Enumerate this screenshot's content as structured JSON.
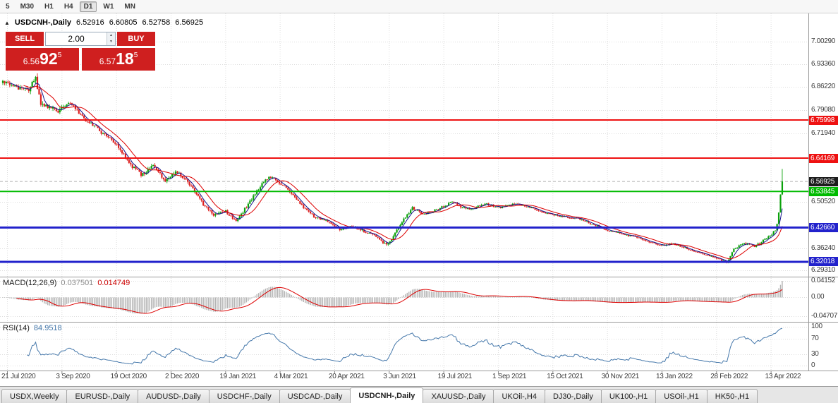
{
  "toolbar": {
    "timeframes": [
      {
        "label": "5",
        "active": false
      },
      {
        "label": "M30",
        "active": false
      },
      {
        "label": "H1",
        "active": false
      },
      {
        "label": "H4",
        "active": false
      },
      {
        "label": "D1",
        "active": true
      },
      {
        "label": "W1",
        "active": false
      },
      {
        "label": "MN",
        "active": false
      }
    ]
  },
  "chart_header": {
    "collapse_arrow": "▲",
    "symbol": "USDCNH-,Daily",
    "open": "6.52916",
    "high": "6.60805",
    "low": "6.52758",
    "close": "6.56925"
  },
  "trade_panel": {
    "sell_label": "SELL",
    "buy_label": "BUY",
    "volume": "2.00",
    "spinner_up_icon": "▲",
    "spinner_down_icon": "▼",
    "sell_price": {
      "small": "6.56",
      "big": "92",
      "sup": "5"
    },
    "buy_price": {
      "small": "6.57",
      "big": "18",
      "sup": "5"
    }
  },
  "price_axis": {
    "labels": [
      {
        "text": "7.00290",
        "value": 7.0029
      },
      {
        "text": "6.93360",
        "value": 6.9336
      },
      {
        "text": "6.86220",
        "value": 6.8622
      },
      {
        "text": "6.79080",
        "value": 6.7908
      },
      {
        "text": "6.71940",
        "value": 6.7194
      },
      {
        "text": "6.50520",
        "value": 6.5052
      },
      {
        "text": "6.36240",
        "value": 6.3624
      },
      {
        "text": "6.29310",
        "value": 6.2931
      }
    ]
  },
  "macd_panel": {
    "name": "MACD(12,26,9)",
    "value_main": "0.037501",
    "value_signal": "0.014749",
    "axis": [
      {
        "text": "0.04152",
        "value": 0.04152
      },
      {
        "text": "0.00",
        "value": 0
      },
      {
        "text": "-0.04707",
        "value": -0.04707
      }
    ]
  },
  "rsi_panel": {
    "name": "RSI(14)",
    "value": "84.9518",
    "axis": [
      {
        "text": "100",
        "value": 100
      },
      {
        "text": "70",
        "value": 70
      },
      {
        "text": "30",
        "value": 30
      },
      {
        "text": "0",
        "value": 0
      }
    ]
  },
  "date_axis": [
    "21 Jul 2020",
    "3 Sep 2020",
    "19 Oct 2020",
    "2 Dec 2020",
    "19 Jan 2021",
    "4 Mar 2021",
    "20 Apr 2021",
    "3 Jun 2021",
    "19 Jul 2021",
    "1 Sep 2021",
    "15 Oct 2021",
    "30 Nov 2021",
    "13 Jan 2022",
    "28 Feb 2022",
    "13 Apr 2022"
  ],
  "tabs": [
    {
      "label": "USDX,Weekly",
      "active": false
    },
    {
      "label": "EURUSD-,Daily",
      "active": false
    },
    {
      "label": "AUDUSD-,Daily",
      "active": false
    },
    {
      "label": "USDCHF-,Daily",
      "active": false
    },
    {
      "label": "USDCAD-,Daily",
      "active": false
    },
    {
      "label": "USDCNH-,Daily",
      "active": true
    },
    {
      "label": "XAUUSD-,Daily",
      "active": false
    },
    {
      "label": "UKOil-,H4",
      "active": false
    },
    {
      "label": "DJ30-,Daily",
      "active": false
    },
    {
      "label": "UK100-,H1",
      "active": false
    },
    {
      "label": "USOil-,H1",
      "active": false
    },
    {
      "label": "HK50-,H1",
      "active": false
    }
  ],
  "colors": {
    "candle_up": "#0aa10a",
    "candle_down": "#dd2020",
    "ma_fast": "#15158c",
    "ma_slow": "#dd0000",
    "macd_hist": "#b4b4b4",
    "macd_signal": "#dd0000",
    "rsi_line": "#4477aa",
    "trade_red": "#cf1f1f",
    "bid_badge": "#1c1c1c",
    "grid": "#dddddd",
    "separator": "#9a9a9a"
  },
  "chart_data": {
    "type": "candlestick",
    "symbol": "USDCNH-",
    "timeframe": "Daily",
    "current_bar": {
      "open": 6.52916,
      "high": 6.60805,
      "low": 6.52758,
      "close": 6.56925
    },
    "bid": 6.56925,
    "ask": 6.57185,
    "num_candles": 452,
    "seed": 12345,
    "pane_scale": {
      "main": {
        "min": 6.2742,
        "max": 7.0904
      },
      "macd": {
        "min": -0.0613,
        "max": 0.0504
      },
      "rsi": {
        "min": -12.7,
        "max": 110.9
      }
    },
    "levels": [
      {
        "text": "6.75998",
        "value": 6.75998,
        "color": "#ee1111",
        "style": "solid",
        "width": 2
      },
      {
        "text": "6.64169",
        "value": 6.64169,
        "color": "#ee1111",
        "style": "solid",
        "width": 2
      },
      {
        "text": "6.56925",
        "value": 6.56925,
        "color": "#1c1c1c",
        "style": "bid",
        "width": 1
      },
      {
        "text": "6.53845",
        "value": 6.53845,
        "color": "#00bb00",
        "style": "solid",
        "width": 2
      },
      {
        "text": "6.42660",
        "value": 6.4266,
        "color": "#2222cc",
        "style": "solid",
        "width": 3
      },
      {
        "text": "6.32018",
        "value": 6.32018,
        "color": "#2222cc",
        "style": "solid",
        "width": 3
      }
    ],
    "moving_averages": [
      {
        "period": 5,
        "color": "#15158c"
      },
      {
        "period": 13,
        "color": "#dd0000"
      }
    ],
    "macd": {
      "fast": 12,
      "slow": 26,
      "signal": 9,
      "axis_max": 0.04152,
      "current_main": 0.037501,
      "current_signal": 0.014749
    },
    "rsi": {
      "period": 14,
      "current": 84.9518,
      "levels": [
        30,
        70
      ]
    },
    "close_anchors": [
      [
        0,
        6.875
      ],
      [
        8,
        6.862
      ],
      [
        15,
        6.854
      ],
      [
        19,
        6.887
      ],
      [
        22,
        6.806
      ],
      [
        27,
        6.797
      ],
      [
        32,
        6.788
      ],
      [
        38,
        6.816
      ],
      [
        43,
        6.79
      ],
      [
        47,
        6.762
      ],
      [
        52,
        6.746
      ],
      [
        57,
        6.721
      ],
      [
        62,
        6.703
      ],
      [
        66,
        6.686
      ],
      [
        69,
        6.66
      ],
      [
        72,
        6.634
      ],
      [
        76,
        6.61
      ],
      [
        80,
        6.592
      ],
      [
        84,
        6.604
      ],
      [
        87,
        6.617
      ],
      [
        90,
        6.6
      ],
      [
        94,
        6.572
      ],
      [
        97,
        6.585
      ],
      [
        100,
        6.601
      ],
      [
        103,
        6.59
      ],
      [
        106,
        6.576
      ],
      [
        110,
        6.545
      ],
      [
        114,
        6.512
      ],
      [
        118,
        6.487
      ],
      [
        122,
        6.466
      ],
      [
        126,
        6.472
      ],
      [
        129,
        6.477
      ],
      [
        132,
        6.46
      ],
      [
        135,
        6.447
      ],
      [
        138,
        6.468
      ],
      [
        142,
        6.5
      ],
      [
        146,
        6.532
      ],
      [
        150,
        6.563
      ],
      [
        153,
        6.578
      ],
      [
        155,
        6.585
      ],
      [
        158,
        6.572
      ],
      [
        160,
        6.561
      ],
      [
        163,
        6.552
      ],
      [
        165,
        6.546
      ],
      [
        168,
        6.525
      ],
      [
        172,
        6.5
      ],
      [
        176,
        6.48
      ],
      [
        180,
        6.462
      ],
      [
        184,
        6.452
      ],
      [
        188,
        6.445
      ],
      [
        192,
        6.43
      ],
      [
        195,
        6.421
      ],
      [
        198,
        6.424
      ],
      [
        202,
        6.431
      ],
      [
        206,
        6.423
      ],
      [
        209,
        6.415
      ],
      [
        212,
        6.408
      ],
      [
        215,
        6.4
      ],
      [
        218,
        6.388
      ],
      [
        222,
        6.374
      ],
      [
        224,
        6.382
      ],
      [
        226,
        6.401
      ],
      [
        229,
        6.425
      ],
      [
        232,
        6.452
      ],
      [
        235,
        6.472
      ],
      [
        237,
        6.488
      ],
      [
        240,
        6.478
      ],
      [
        243,
        6.47
      ],
      [
        247,
        6.473
      ],
      [
        251,
        6.482
      ],
      [
        255,
        6.492
      ],
      [
        258,
        6.5
      ],
      [
        260,
        6.506
      ],
      [
        263,
        6.497
      ],
      [
        266,
        6.488
      ],
      [
        270,
        6.483
      ],
      [
        274,
        6.49
      ],
      [
        277,
        6.496
      ],
      [
        280,
        6.499
      ],
      [
        284,
        6.493
      ],
      [
        288,
        6.489
      ],
      [
        292,
        6.494
      ],
      [
        295,
        6.498
      ],
      [
        298,
        6.5
      ],
      [
        302,
        6.493
      ],
      [
        306,
        6.487
      ],
      [
        309,
        6.481
      ],
      [
        313,
        6.474
      ],
      [
        317,
        6.468
      ],
      [
        321,
        6.463
      ],
      [
        325,
        6.459
      ],
      [
        329,
        6.457
      ],
      [
        333,
        6.455
      ],
      [
        337,
        6.446
      ],
      [
        340,
        6.439
      ],
      [
        343,
        6.433
      ],
      [
        347,
        6.424
      ],
      [
        350,
        6.418
      ],
      [
        354,
        6.413
      ],
      [
        358,
        6.407
      ],
      [
        361,
        6.403
      ],
      [
        364,
        6.4
      ],
      [
        368,
        6.393
      ],
      [
        372,
        6.387
      ],
      [
        376,
        6.378
      ],
      [
        380,
        6.371
      ],
      [
        384,
        6.373
      ],
      [
        388,
        6.377
      ],
      [
        392,
        6.369
      ],
      [
        396,
        6.361
      ],
      [
        400,
        6.353
      ],
      [
        404,
        6.347
      ],
      [
        408,
        6.34
      ],
      [
        413,
        6.332
      ],
      [
        416,
        6.324
      ],
      [
        419,
        6.318
      ],
      [
        421,
        6.338
      ],
      [
        423,
        6.358
      ],
      [
        426,
        6.37
      ],
      [
        429,
        6.378
      ],
      [
        432,
        6.373
      ],
      [
        435,
        6.368
      ],
      [
        438,
        6.378
      ],
      [
        441,
        6.39
      ],
      [
        443,
        6.396
      ],
      [
        445,
        6.403
      ],
      [
        447,
        6.42
      ],
      [
        448,
        6.437
      ],
      [
        449,
        6.473
      ],
      [
        450,
        6.529
      ],
      [
        451,
        6.56925
      ]
    ],
    "volatility_anchors": [
      [
        0,
        0.014
      ],
      [
        15,
        0.015
      ],
      [
        19,
        0.022
      ],
      [
        23,
        0.015
      ],
      [
        40,
        0.011
      ],
      [
        60,
        0.011
      ],
      [
        80,
        0.013
      ],
      [
        95,
        0.012
      ],
      [
        110,
        0.011
      ],
      [
        130,
        0.009
      ],
      [
        150,
        0.01
      ],
      [
        165,
        0.008
      ],
      [
        185,
        0.008
      ],
      [
        200,
        0.007
      ],
      [
        215,
        0.008
      ],
      [
        222,
        0.01
      ],
      [
        230,
        0.009
      ],
      [
        245,
        0.007
      ],
      [
        262,
        0.0075
      ],
      [
        280,
        0.006
      ],
      [
        300,
        0.006
      ],
      [
        320,
        0.0055
      ],
      [
        340,
        0.0055
      ],
      [
        360,
        0.005
      ],
      [
        380,
        0.0055
      ],
      [
        400,
        0.005
      ],
      [
        413,
        0.0055
      ],
      [
        421,
        0.008
      ],
      [
        435,
        0.006
      ],
      [
        444,
        0.007
      ],
      [
        448,
        0.009
      ],
      [
        451,
        0.006
      ]
    ]
  }
}
